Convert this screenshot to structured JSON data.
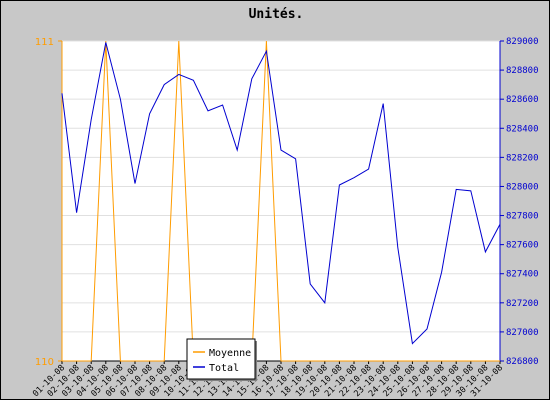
{
  "chart_data": {
    "type": "line",
    "title": "Unités.",
    "x": [
      "01-10-08",
      "02-10-08",
      "03-10-08",
      "04-10-08",
      "05-10-08",
      "06-10-08",
      "07-10-08",
      "08-10-08",
      "09-10-08",
      "10-10-08",
      "11-10-08",
      "12-10-08",
      "13-10-08",
      "14-10-08",
      "15-10-08",
      "16-10-08",
      "17-10-08",
      "18-10-08",
      "19-10-08",
      "20-10-08",
      "21-10-08",
      "22-10-08",
      "23-10-08",
      "24-10-08",
      "25-10-08",
      "26-10-08",
      "27-10-08",
      "28-10-08",
      "29-10-08",
      "30-10-08",
      "31-10-08"
    ],
    "left_axis": {
      "ylim": [
        110,
        111
      ],
      "ticks": [
        110,
        111
      ],
      "color": "#ff9c00"
    },
    "right_axis": {
      "ylim": [
        826800,
        829000
      ],
      "ticks": [
        826800,
        827000,
        827200,
        827400,
        827600,
        827800,
        828000,
        828200,
        828400,
        828600,
        828800,
        829000
      ],
      "color": "#0000d0"
    },
    "series": [
      {
        "name": "Moyenne",
        "axis": "left",
        "color": "#ff9c00",
        "values": [
          110,
          110,
          110,
          111,
          110,
          110,
          110,
          110,
          111,
          110,
          110,
          110,
          110,
          110,
          111,
          110,
          110,
          110,
          110,
          110,
          110,
          110,
          110,
          110,
          110,
          110,
          110,
          110,
          110,
          110,
          110
        ]
      },
      {
        "name": "Total",
        "axis": "right",
        "color": "#0000d0",
        "values": [
          828640,
          827820,
          828460,
          828990,
          828600,
          828020,
          828500,
          828700,
          828770,
          828730,
          828520,
          828560,
          828250,
          828740,
          828930,
          828250,
          828190,
          827330,
          827200,
          828010,
          828060,
          828120,
          828570,
          827580,
          826920,
          827020,
          827410,
          827980,
          827970,
          827550,
          827740
        ]
      }
    ],
    "grid": true,
    "legend_position": "bottom-center"
  }
}
